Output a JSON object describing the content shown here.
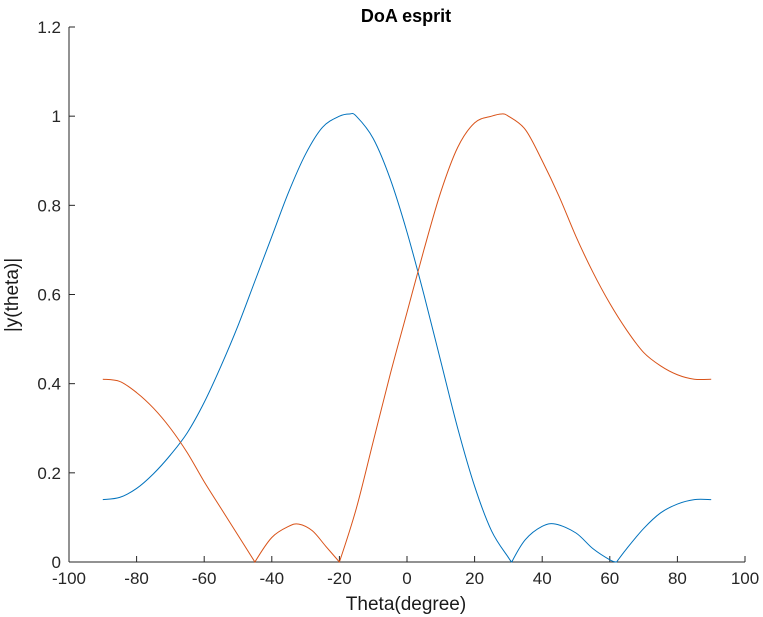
{
  "chart_data": {
    "type": "line",
    "title": "DoA esprit",
    "xlabel": "Theta(degree)",
    "ylabel": "|y(theta)|",
    "xlim": [
      -100,
      100
    ],
    "ylim": [
      0,
      1.2
    ],
    "xticks": [
      "-100",
      "-80",
      "-60",
      "-40",
      "-20",
      "0",
      "20",
      "40",
      "60",
      "80",
      "100"
    ],
    "yticks": [
      "0",
      "0.2",
      "0.4",
      "0.6",
      "0.8",
      "1",
      "1.2"
    ],
    "grid": false,
    "series": [
      {
        "color": "#0072BD",
        "x": [
          -90,
          -85,
          -80,
          -75,
          -70,
          -65,
          -60,
          -55,
          -50,
          -45,
          -40,
          -35,
          -30,
          -25,
          -20,
          -17,
          -15,
          -10,
          -5,
          0,
          5,
          10,
          15,
          20,
          25,
          30,
          31,
          35,
          40,
          44,
          50,
          55,
          60,
          62,
          65,
          70,
          75,
          80,
          85,
          90
        ],
        "y": [
          0.14,
          0.145,
          0.165,
          0.198,
          0.24,
          0.29,
          0.358,
          0.44,
          0.53,
          0.63,
          0.73,
          0.83,
          0.915,
          0.975,
          1.0,
          1.005,
          1.0,
          0.95,
          0.86,
          0.74,
          0.6,
          0.45,
          0.3,
          0.17,
          0.07,
          0.01,
          0.0,
          0.05,
          0.08,
          0.085,
          0.065,
          0.03,
          0.005,
          0.0,
          0.03,
          0.075,
          0.11,
          0.13,
          0.14,
          0.14
        ]
      },
      {
        "color": "#D95319",
        "x": [
          -90,
          -85,
          -80,
          -75,
          -70,
          -65,
          -60,
          -55,
          -50,
          -45,
          -40,
          -35,
          -32,
          -28,
          -24,
          -20,
          -15,
          -10,
          -5,
          0,
          5,
          10,
          15,
          20,
          25,
          28,
          30,
          35,
          40,
          45,
          50,
          55,
          60,
          65,
          70,
          75,
          80,
          85,
          90
        ],
        "y": [
          0.41,
          0.405,
          0.38,
          0.345,
          0.3,
          0.245,
          0.18,
          0.12,
          0.06,
          0.0,
          0.055,
          0.08,
          0.085,
          0.07,
          0.035,
          0.0,
          0.12,
          0.27,
          0.42,
          0.56,
          0.7,
          0.83,
          0.93,
          0.985,
          1.0,
          1.005,
          1.0,
          0.97,
          0.9,
          0.82,
          0.73,
          0.65,
          0.58,
          0.52,
          0.47,
          0.44,
          0.42,
          0.41,
          0.41
        ]
      }
    ]
  }
}
